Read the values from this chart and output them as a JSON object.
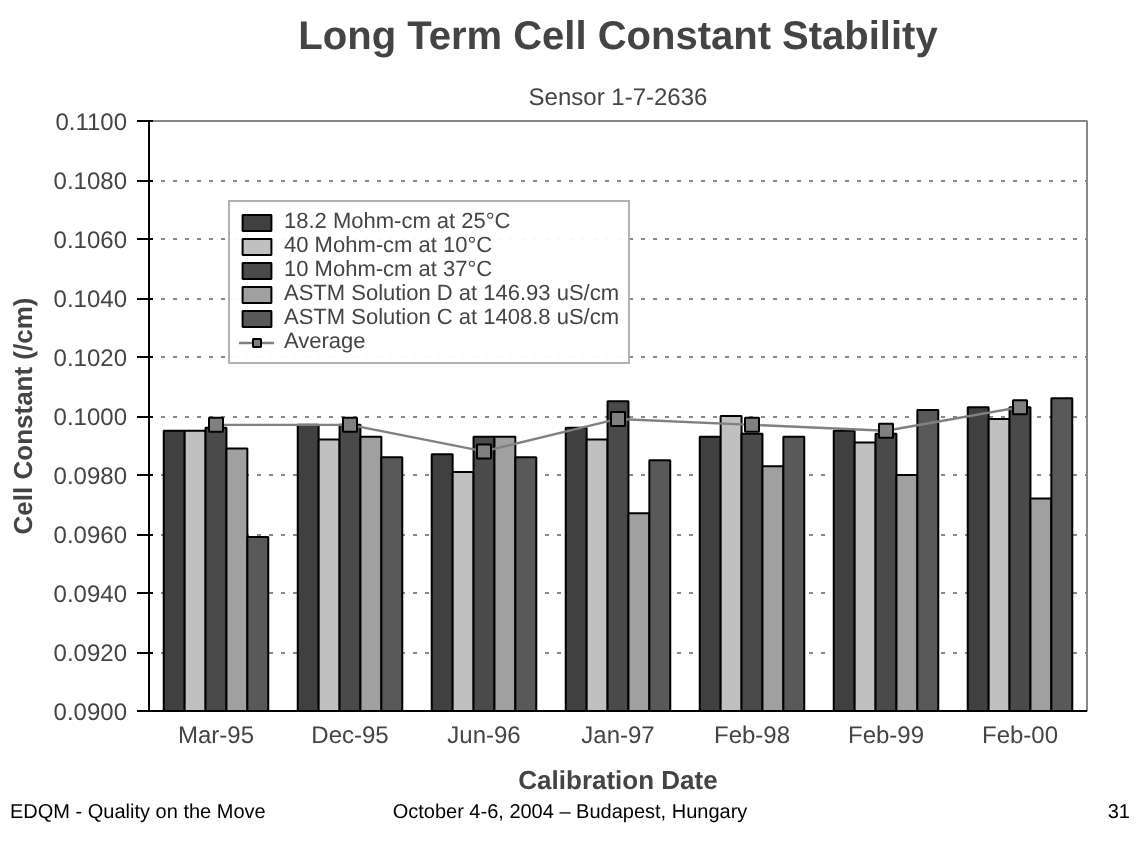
{
  "chart_data": {
    "type": "bar",
    "title": "Long Term Cell Constant Stability",
    "subtitle": "Sensor 1-7-2636",
    "xlabel": "Calibration Date",
    "ylabel": "Cell Constant (/cm)",
    "categories": [
      "Mar-95",
      "Dec-95",
      "Jun-96",
      "Jan-97",
      "Feb-98",
      "Feb-99",
      "Feb-00"
    ],
    "series": [
      {
        "name": "18.2 Mohm-cm at 25°C",
        "color": "#404040",
        "values": [
          0.0995,
          0.0997,
          0.0987,
          0.0996,
          0.0993,
          0.0995,
          0.1003
        ]
      },
      {
        "name": "40 Mohm-cm at 10°C",
        "color": "#c0c0c0",
        "values": [
          0.0995,
          0.0992,
          0.0981,
          0.0992,
          0.1,
          0.0991,
          0.0999
        ]
      },
      {
        "name": "10 Mohm-cm at 37°C",
        "color": "#4a4a4a",
        "values": [
          0.0996,
          0.0997,
          0.0993,
          0.1005,
          0.0994,
          0.0994,
          0.1003
        ]
      },
      {
        "name": "ASTM Solution D at 146.93 uS/cm",
        "color": "#a0a0a0",
        "values": [
          0.0989,
          0.0993,
          0.0993,
          0.0967,
          0.0983,
          0.098,
          0.0972
        ]
      },
      {
        "name": "ASTM Solution C at 1408.8 uS/cm",
        "color": "#595959",
        "values": [
          0.0959,
          0.0986,
          0.0986,
          0.0985,
          0.0993,
          0.1002,
          0.1006
        ]
      },
      {
        "name": "Average",
        "type": "line",
        "color": "#808080",
        "marker": "square",
        "values": [
          0.0997,
          0.0997,
          0.0988,
          0.0999,
          0.0997,
          0.0995,
          0.1003
        ]
      }
    ],
    "ylim": [
      0.09,
      0.11
    ],
    "yticks": [
      {
        "value": 0.09,
        "label": "0.0900"
      },
      {
        "value": 0.092,
        "label": "0.0920"
      },
      {
        "value": 0.094,
        "label": "0.0940"
      },
      {
        "value": 0.096,
        "label": "0.0960"
      },
      {
        "value": 0.098,
        "label": "0.0980"
      },
      {
        "value": 0.1,
        "label": "0.1000"
      },
      {
        "value": 0.102,
        "label": "0.1020"
      },
      {
        "value": 0.104,
        "label": "0.1040"
      },
      {
        "value": 0.106,
        "label": "0.1060"
      },
      {
        "value": 0.108,
        "label": "0.1080"
      },
      {
        "value": 0.11,
        "label": "0.1100"
      }
    ],
    "grid": "y",
    "legend": "top left",
    "annotations": [
      "EDQM - Quality on the Move",
      "October 4-6, 2004 – Budapest, Hungary",
      "31"
    ]
  }
}
